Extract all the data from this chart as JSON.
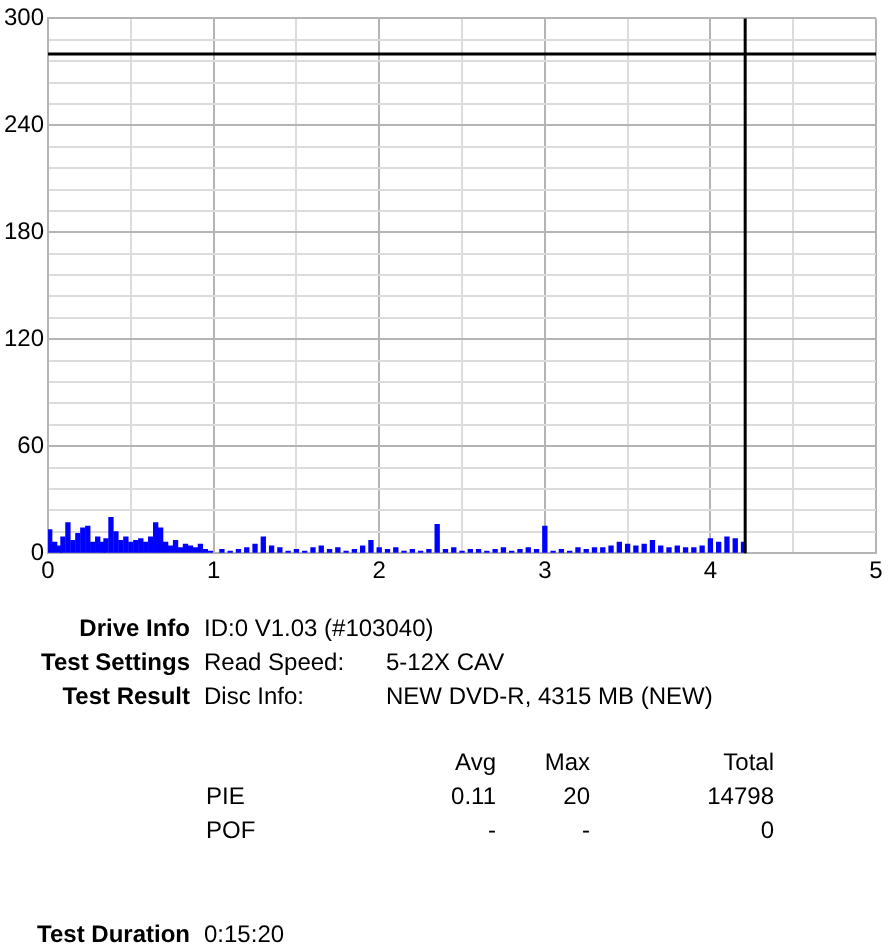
{
  "chart_data": {
    "type": "bar",
    "color": "#0000ff",
    "x": [
      0.01,
      0.04,
      0.07,
      0.09,
      0.12,
      0.15,
      0.18,
      0.21,
      0.24,
      0.27,
      0.3,
      0.33,
      0.35,
      0.38,
      0.41,
      0.44,
      0.47,
      0.5,
      0.53,
      0.56,
      0.59,
      0.62,
      0.65,
      0.68,
      0.71,
      0.74,
      0.77,
      0.8,
      0.83,
      0.86,
      0.89,
      0.92,
      0.95,
      0.98,
      1.05,
      1.1,
      1.15,
      1.2,
      1.25,
      1.3,
      1.35,
      1.4,
      1.45,
      1.5,
      1.55,
      1.6,
      1.65,
      1.7,
      1.75,
      1.8,
      1.85,
      1.9,
      1.95,
      2.0,
      2.05,
      2.1,
      2.15,
      2.2,
      2.25,
      2.3,
      2.35,
      2.4,
      2.45,
      2.5,
      2.55,
      2.6,
      2.65,
      2.7,
      2.75,
      2.8,
      2.85,
      2.9,
      2.95,
      3.0,
      3.05,
      3.1,
      3.15,
      3.2,
      3.25,
      3.3,
      3.35,
      3.4,
      3.45,
      3.5,
      3.55,
      3.6,
      3.65,
      3.7,
      3.75,
      3.8,
      3.85,
      3.9,
      3.95,
      4.0,
      4.05,
      4.1,
      4.15,
      4.2
    ],
    "values": [
      13,
      6,
      4,
      9,
      17,
      7,
      11,
      14,
      15,
      6,
      9,
      6,
      8,
      20,
      12,
      7,
      9,
      6,
      7,
      8,
      6,
      9,
      17,
      14,
      6,
      4,
      7,
      3,
      5,
      4,
      3,
      5,
      2,
      1,
      2,
      1,
      2,
      3,
      5,
      9,
      4,
      3,
      1,
      2,
      1,
      3,
      4,
      2,
      3,
      1,
      2,
      4,
      7,
      3,
      2,
      3,
      1,
      2,
      1,
      2,
      16,
      2,
      3,
      1,
      2,
      2,
      1,
      2,
      3,
      1,
      2,
      3,
      2,
      15,
      1,
      2,
      1,
      3,
      2,
      3,
      3,
      4,
      6,
      5,
      4,
      5,
      7,
      4,
      3,
      4,
      3,
      3,
      4,
      8,
      6,
      9,
      8,
      6
    ],
    "xlim": [
      0,
      5
    ],
    "xticks": [
      0,
      {
        "value": 0.5,
        "label": null
      },
      1,
      {
        "value": 1.5,
        "label": null
      },
      2,
      {
        "value": 2.5,
        "label": null
      },
      3,
      {
        "value": 3.5,
        "label": null
      },
      4,
      {
        "value": 4.5,
        "label": null
      },
      5
    ],
    "ylim": [
      0,
      300
    ],
    "yticks": [
      0,
      {
        "value": 12,
        "label": null
      },
      {
        "value": 24,
        "label": null
      },
      {
        "value": 36,
        "label": null
      },
      {
        "value": 48,
        "label": null
      },
      60,
      {
        "value": 72,
        "label": null
      },
      {
        "value": 84,
        "label": null
      },
      {
        "value": 96,
        "label": null
      },
      {
        "value": 108,
        "label": null
      },
      120,
      {
        "value": 132,
        "label": null
      },
      {
        "value": 144,
        "label": null
      },
      {
        "value": 156,
        "label": null
      },
      {
        "value": 168,
        "label": null
      },
      180,
      {
        "value": 192,
        "label": null
      },
      {
        "value": 204,
        "label": null
      },
      {
        "value": 216,
        "label": null
      },
      {
        "value": 228,
        "label": null
      },
      240,
      {
        "value": 252,
        "label": null
      },
      {
        "value": 264,
        "label": null
      },
      {
        "value": 276,
        "label": null
      },
      {
        "value": 288,
        "label": null
      },
      300
    ],
    "grid": true,
    "legend": false,
    "ref_lines": [
      {
        "axis": "x",
        "value": 4.21,
        "color": "#000000"
      },
      {
        "axis": "y",
        "value": 280,
        "color": "#000000"
      }
    ],
    "annotations": [
      "Drive Info",
      "ID:0 V1.03 (#103040)",
      "Test Settings",
      "Read Speed:",
      "5-12X CAV",
      "Test Result",
      "Disc Info:",
      "NEW DVD-R, 4315 MB (NEW)",
      "Avg",
      "Max",
      "Total",
      "PIE",
      "0.11",
      "20",
      "14798",
      "POF",
      "-",
      "-",
      "0",
      "Test Duration",
      "0:15:20"
    ]
  }
}
